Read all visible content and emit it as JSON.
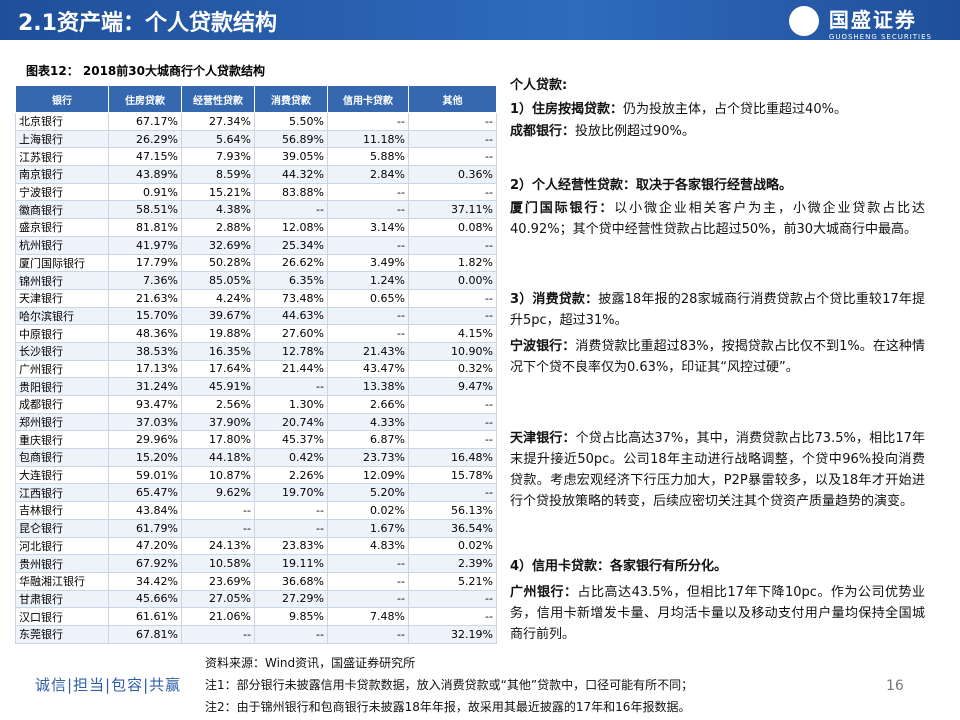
{
  "header": {
    "title": "2.1资产端：个人贷款结构",
    "logo": "国盛证券",
    "logo_en": "GUOSHENG SECURITIES"
  },
  "table": {
    "caption": "图表12： 2018前30大城商行个人贷款结构",
    "columns": [
      "银行",
      "住房贷款",
      "经营性贷款",
      "消费贷款",
      "信用卡贷款",
      "其他"
    ],
    "rows": [
      [
        "北京银行",
        "67.17%",
        "27.34%",
        "5.50%",
        "--",
        "--"
      ],
      [
        "上海银行",
        "26.29%",
        "5.64%",
        "56.89%",
        "11.18%",
        "--"
      ],
      [
        "江苏银行",
        "47.15%",
        "7.93%",
        "39.05%",
        "5.88%",
        "--"
      ],
      [
        "南京银行",
        "43.89%",
        "8.59%",
        "44.32%",
        "2.84%",
        "0.36%"
      ],
      [
        "宁波银行",
        "0.91%",
        "15.21%",
        "83.88%",
        "--",
        "--"
      ],
      [
        "徽商银行",
        "58.51%",
        "4.38%",
        "--",
        "--",
        "37.11%"
      ],
      [
        "盛京银行",
        "81.81%",
        "2.88%",
        "12.08%",
        "3.14%",
        "0.08%"
      ],
      [
        "杭州银行",
        "41.97%",
        "32.69%",
        "25.34%",
        "--",
        "--"
      ],
      [
        "厦门国际银行",
        "17.79%",
        "50.28%",
        "26.62%",
        "3.49%",
        "1.82%"
      ],
      [
        "锦州银行",
        "7.36%",
        "85.05%",
        "6.35%",
        "1.24%",
        "0.00%"
      ],
      [
        "天津银行",
        "21.63%",
        "4.24%",
        "73.48%",
        "0.65%",
        "--"
      ],
      [
        "哈尔滨银行",
        "15.70%",
        "39.67%",
        "44.63%",
        "--",
        "--"
      ],
      [
        "中原银行",
        "48.36%",
        "19.88%",
        "27.60%",
        "--",
        "4.15%"
      ],
      [
        "长沙银行",
        "38.53%",
        "16.35%",
        "12.78%",
        "21.43%",
        "10.90%"
      ],
      [
        "广州银行",
        "17.13%",
        "17.64%",
        "21.44%",
        "43.47%",
        "0.32%"
      ],
      [
        "贵阳银行",
        "31.24%",
        "45.91%",
        "--",
        "13.38%",
        "9.47%"
      ],
      [
        "成都银行",
        "93.47%",
        "2.56%",
        "1.30%",
        "2.66%",
        "--"
      ],
      [
        "郑州银行",
        "37.03%",
        "37.90%",
        "20.74%",
        "4.33%",
        "--"
      ],
      [
        "重庆银行",
        "29.96%",
        "17.80%",
        "45.37%",
        "6.87%",
        "--"
      ],
      [
        "包商银行",
        "15.20%",
        "44.18%",
        "0.42%",
        "23.73%",
        "16.48%"
      ],
      [
        "大连银行",
        "59.01%",
        "10.87%",
        "2.26%",
        "12.09%",
        "15.78%"
      ],
      [
        "江西银行",
        "65.47%",
        "9.62%",
        "19.70%",
        "5.20%",
        "--"
      ],
      [
        "吉林银行",
        "43.84%",
        "--",
        "--",
        "0.02%",
        "56.13%"
      ],
      [
        "昆仑银行",
        "61.79%",
        "--",
        "--",
        "1.67%",
        "36.54%"
      ],
      [
        "河北银行",
        "47.20%",
        "24.13%",
        "23.83%",
        "4.83%",
        "0.02%"
      ],
      [
        "贵州银行",
        "67.92%",
        "10.58%",
        "19.11%",
        "--",
        "2.39%"
      ],
      [
        "华融湘江银行",
        "34.42%",
        "23.69%",
        "36.68%",
        "--",
        "5.21%"
      ],
      [
        "甘肃银行",
        "45.66%",
        "27.05%",
        "27.29%",
        "--",
        "--"
      ],
      [
        "汉口银行",
        "61.61%",
        "21.06%",
        "9.85%",
        "7.48%",
        "--"
      ],
      [
        "东莞银行",
        "67.81%",
        "--",
        "--",
        "--",
        "32.19%"
      ]
    ]
  },
  "commentary": [
    {
      "label": "个人贷款:"
    },
    {
      "label": "1）住房按揭贷款：",
      "text": "仍为投放主体，占个贷比重超过40%。"
    },
    {
      "label": "成都银行：",
      "text": "投放比例超过90%。"
    },
    {
      "label": "2）个人经营性贷款：取决于各家银行经营战略。"
    },
    {
      "label": "厦门国际银行：",
      "text": "以小微企业相关客户为主，小微企业贷款占比达40.92%；其个贷中经营性贷款占比超过50%，前30大城商行中最高。"
    },
    {
      "label": "3）消费贷款：",
      "text": "披露18年报的28家城商行消费贷款占个贷比重较17年提升5pc，超过31%。"
    },
    {
      "label": "宁波银行：",
      "text": "消费贷款比重超过83%，按揭贷款占比仅不到1%。在这种情况下个贷不良率仅为0.63%，印证其“风控过硬”。"
    },
    {
      "label": "天津银行：",
      "text": "个贷占比高达37%，其中，消费贷款占比73.5%，相比17年末提升接近50pc。公司18年主动进行战略调整，个贷中96%投向消费贷款。考虑宏观经济下行压力加大，P2P暴雷较多，以及18年才开始进行个贷投放策略的转变，后续应密切关注其个贷资产质量趋势的演变。"
    },
    {
      "label": "4）信用卡贷款：各家银行有所分化。"
    },
    {
      "label": "广州银行：",
      "text": "占比高达43.5%，但相比17年下降10pc。作为公司优势业务，信用卡新增发卡量、月均活卡量以及移动支付用户量均保持全国城商行前列。"
    }
  ],
  "footer": {
    "source": "资料来源：Wind资讯，国盛证券研究所",
    "notes": [
      "注1：部分银行未披露信用卡贷款数据，放入消费贷款或“其他”贷款中，口径可能有所不同；",
      "注2：由于锦州银行和包商银行未披露18年年报，故采用其最近披露的17年和16年报数据。"
    ],
    "slogan": "诚信|担当|包容|共赢",
    "page": "16"
  }
}
